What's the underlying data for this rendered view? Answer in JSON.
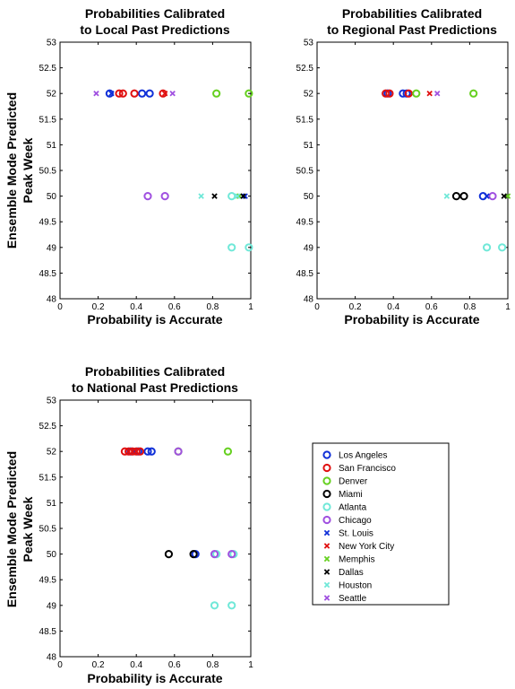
{
  "chart_data": [
    {
      "type": "scatter",
      "title": [
        "Probabilities Calibrated",
        "to Local Past Predictions"
      ],
      "xlabel": "Probability is Accurate",
      "ylabel": [
        "Ensemble Mode Predicted",
        "Peak Week"
      ],
      "xlim": [
        0,
        1
      ],
      "ylim": [
        48,
        53
      ],
      "xticks": [
        "0",
        "0.2",
        "0.4",
        "0.6",
        "0.8",
        "1"
      ],
      "yticks": [
        "48",
        "48.5",
        "49",
        "49.5",
        "50",
        "50.5",
        "51",
        "51.5",
        "52",
        "52.5",
        "53"
      ],
      "series": [
        {
          "name": "Los Angeles",
          "points": [
            [
              0.26,
              52
            ],
            [
              0.43,
              52
            ],
            [
              0.47,
              52
            ]
          ]
        },
        {
          "name": "San Francisco",
          "points": [
            [
              0.31,
              52
            ],
            [
              0.33,
              52
            ],
            [
              0.39,
              52
            ],
            [
              0.54,
              52
            ]
          ]
        },
        {
          "name": "Denver",
          "points": [
            [
              0.82,
              52
            ],
            [
              0.99,
              52
            ]
          ]
        },
        {
          "name": "Miami",
          "points": []
        },
        {
          "name": "Atlanta",
          "points": [
            [
              0.9,
              50
            ],
            [
              0.9,
              49
            ],
            [
              0.99,
              49
            ]
          ]
        },
        {
          "name": "Chicago",
          "points": [
            [
              0.46,
              50
            ],
            [
              0.55,
              50
            ]
          ]
        },
        {
          "name": "St. Louis",
          "points": [
            [
              0.27,
              52
            ],
            [
              0.97,
              50
            ]
          ]
        },
        {
          "name": "New York City",
          "points": [
            [
              0.55,
              52
            ]
          ]
        },
        {
          "name": "Memphis",
          "points": [
            [
              0.94,
              50
            ]
          ]
        },
        {
          "name": "Dallas",
          "points": [
            [
              0.81,
              50
            ],
            [
              0.96,
              50
            ]
          ]
        },
        {
          "name": "Houston",
          "points": [
            [
              0.74,
              50
            ],
            [
              0.93,
              50
            ]
          ]
        },
        {
          "name": "Seattle",
          "points": [
            [
              0.19,
              52
            ],
            [
              0.59,
              52
            ]
          ]
        }
      ]
    },
    {
      "type": "scatter",
      "title": [
        "Probabilities Calibrated",
        "to Regional Past Predictions"
      ],
      "xlabel": "Probability is Accurate",
      "ylabel": [],
      "xlim": [
        0,
        1
      ],
      "ylim": [
        48,
        53
      ],
      "xticks": [
        "0",
        "0.2",
        "0.4",
        "0.6",
        "0.8",
        "1"
      ],
      "yticks": [
        "48",
        "48.5",
        "49",
        "49.5",
        "50",
        "50.5",
        "51",
        "51.5",
        "52",
        "52.5",
        "53"
      ],
      "series": [
        {
          "name": "Los Angeles",
          "points": [
            [
              0.37,
              52
            ],
            [
              0.45,
              52
            ],
            [
              0.47,
              52
            ],
            [
              0.87,
              50
            ]
          ]
        },
        {
          "name": "San Francisco",
          "points": [
            [
              0.36,
              52
            ],
            [
              0.38,
              52
            ],
            [
              0.48,
              52
            ]
          ]
        },
        {
          "name": "Denver",
          "points": [
            [
              0.52,
              52
            ],
            [
              0.82,
              52
            ]
          ]
        },
        {
          "name": "Miami",
          "points": [
            [
              0.73,
              50
            ],
            [
              0.77,
              50
            ]
          ]
        },
        {
          "name": "Atlanta",
          "points": [
            [
              0.89,
              49
            ],
            [
              0.97,
              49
            ]
          ]
        },
        {
          "name": "Chicago",
          "points": [
            [
              0.92,
              50
            ]
          ]
        },
        {
          "name": "St. Louis",
          "points": [
            [
              0.89,
              50
            ]
          ]
        },
        {
          "name": "New York City",
          "points": [
            [
              0.59,
              52
            ]
          ]
        },
        {
          "name": "Memphis",
          "points": [
            [
              1.0,
              50
            ]
          ]
        },
        {
          "name": "Dallas",
          "points": [
            [
              0.98,
              50
            ]
          ]
        },
        {
          "name": "Houston",
          "points": [
            [
              0.68,
              50
            ]
          ]
        },
        {
          "name": "Seattle",
          "points": [
            [
              0.63,
              52
            ]
          ]
        }
      ]
    },
    {
      "type": "scatter",
      "title": [
        "Probabilities Calibrated",
        "to National Past Predictions"
      ],
      "xlabel": "Probability is Accurate",
      "ylabel": [
        "Ensemble Mode Predicted",
        "Peak Week"
      ],
      "xlim": [
        0,
        1
      ],
      "ylim": [
        48,
        53
      ],
      "xticks": [
        "0",
        "0.2",
        "0.4",
        "0.6",
        "0.8",
        "1"
      ],
      "yticks": [
        "48",
        "48.5",
        "49",
        "49.5",
        "50",
        "50.5",
        "51",
        "51.5",
        "52",
        "52.5",
        "53"
      ],
      "series": [
        {
          "name": "Los Angeles",
          "points": [
            [
              0.37,
              52
            ],
            [
              0.41,
              52
            ],
            [
              0.46,
              52
            ],
            [
              0.48,
              52
            ],
            [
              0.71,
              50
            ]
          ]
        },
        {
          "name": "San Francisco",
          "points": [
            [
              0.34,
              52
            ],
            [
              0.36,
              52
            ],
            [
              0.38,
              52
            ],
            [
              0.4,
              52
            ],
            [
              0.42,
              52
            ]
          ]
        },
        {
          "name": "Denver",
          "points": [
            [
              0.62,
              52
            ],
            [
              0.88,
              52
            ]
          ]
        },
        {
          "name": "Miami",
          "points": [
            [
              0.57,
              50
            ],
            [
              0.7,
              50
            ]
          ]
        },
        {
          "name": "Atlanta",
          "points": [
            [
              0.82,
              50
            ],
            [
              0.91,
              50
            ],
            [
              0.81,
              49
            ],
            [
              0.9,
              49
            ]
          ]
        },
        {
          "name": "Chicago",
          "points": [
            [
              0.62,
              52
            ],
            [
              0.81,
              50
            ],
            [
              0.9,
              50
            ]
          ]
        },
        {
          "name": "St. Louis",
          "points": []
        },
        {
          "name": "New York City",
          "points": []
        },
        {
          "name": "Memphis",
          "points": []
        },
        {
          "name": "Dallas",
          "points": []
        },
        {
          "name": "Houston",
          "points": []
        },
        {
          "name": "Seattle",
          "points": []
        }
      ]
    }
  ],
  "legend": {
    "placement": "bottom-right",
    "items": [
      {
        "label": "Los Angeles",
        "marker": "circle",
        "color": "#1030d8"
      },
      {
        "label": "San Francisco",
        "marker": "circle",
        "color": "#e01010"
      },
      {
        "label": "Denver",
        "marker": "circle",
        "color": "#66d020"
      },
      {
        "label": "Miami",
        "marker": "circle",
        "color": "#000000"
      },
      {
        "label": "Atlanta",
        "marker": "circle",
        "color": "#70e8d8"
      },
      {
        "label": "Chicago",
        "marker": "circle",
        "color": "#a050e0"
      },
      {
        "label": "St. Louis",
        "marker": "x",
        "color": "#1030d8"
      },
      {
        "label": "New York City",
        "marker": "x",
        "color": "#e01010"
      },
      {
        "label": "Memphis",
        "marker": "x",
        "color": "#66d020"
      },
      {
        "label": "Dallas",
        "marker": "x",
        "color": "#000000"
      },
      {
        "label": "Houston",
        "marker": "x",
        "color": "#70e8d8"
      },
      {
        "label": "Seattle",
        "marker": "x",
        "color": "#a050e0"
      }
    ]
  }
}
